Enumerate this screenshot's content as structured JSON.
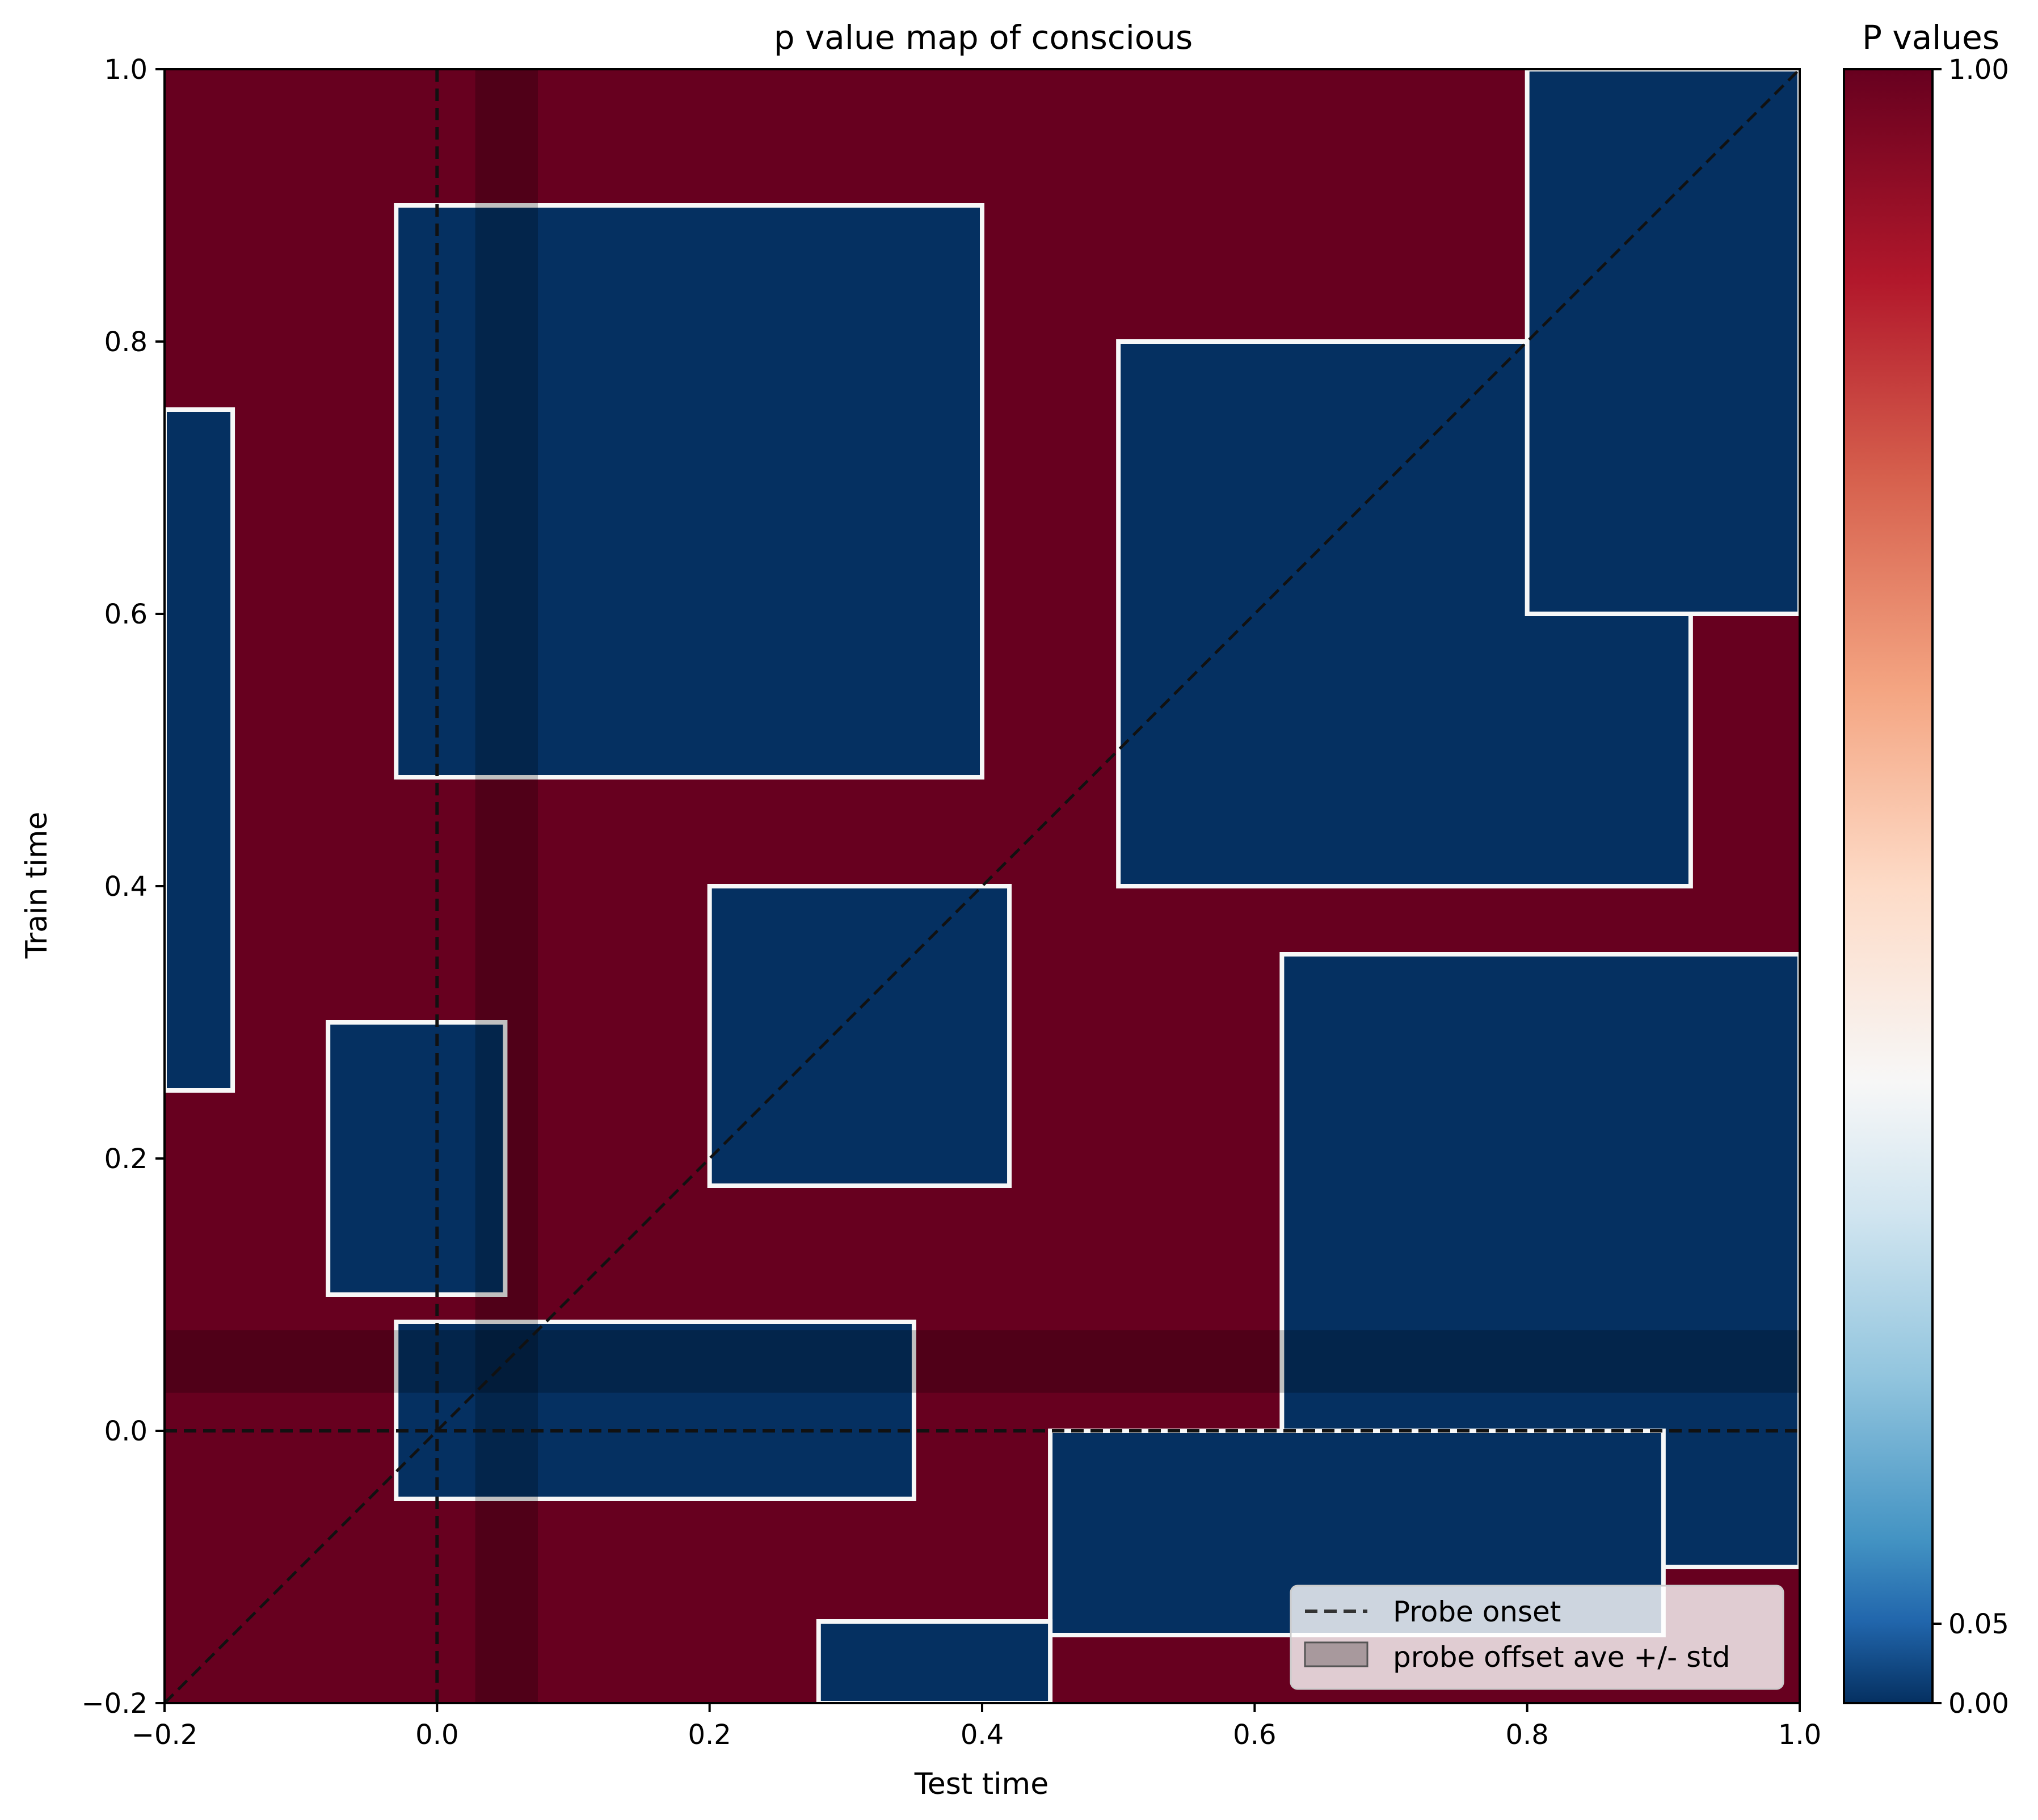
{
  "chart_data": {
    "type": "heatmap",
    "title": "p value map of conscious",
    "xlabel": "Test time",
    "ylabel": "Train time",
    "xlim": [
      -0.2,
      1.0
    ],
    "ylim": [
      -0.2,
      1.0
    ],
    "xticks": [
      "−0.2",
      "0.0",
      "0.2",
      "0.4",
      "0.6",
      "0.8",
      "1.0"
    ],
    "yticks": [
      "−0.2",
      "0.0",
      "0.2",
      "0.4",
      "0.6",
      "0.8",
      "1.0"
    ],
    "xtick_values": [
      -0.2,
      0.0,
      0.2,
      0.4,
      0.6,
      0.8,
      1.0
    ],
    "ytick_values": [
      -0.2,
      0.0,
      0.2,
      0.4,
      0.6,
      0.8,
      1.0
    ],
    "colorbar": {
      "title": "P values",
      "colormap": "RdBu_r",
      "ticks": [
        "0.00",
        "0.05",
        "1.00"
      ],
      "tick_values": [
        0.0,
        0.05,
        1.0
      ]
    },
    "probe_onset": 0.0,
    "probe_offset_band": [
      0.028,
      0.074
    ],
    "diagonal": [
      [
        -0.2,
        -0.2
      ],
      [
        1.0,
        1.0
      ]
    ],
    "legend": {
      "placement": "lower right",
      "entries": [
        "Probe onset",
        "probe offset ave +/- std"
      ]
    },
    "significant_regions": [
      {
        "x": [
          -0.2,
          -0.15
        ],
        "y": [
          0.25,
          0.75
        ]
      },
      {
        "x": [
          -0.03,
          0.4
        ],
        "y": [
          0.48,
          0.9
        ]
      },
      {
        "x": [
          0.2,
          0.42
        ],
        "y": [
          0.18,
          0.4
        ]
      },
      {
        "x": [
          0.5,
          0.92
        ],
        "y": [
          0.4,
          0.8
        ]
      },
      {
        "x": [
          0.62,
          1.0
        ],
        "y": [
          -0.1,
          0.35
        ]
      },
      {
        "x": [
          -0.03,
          0.35
        ],
        "y": [
          -0.05,
          0.08
        ]
      },
      {
        "x": [
          0.45,
          0.9
        ],
        "y": [
          -0.15,
          0.0
        ]
      },
      {
        "x": [
          0.8,
          1.0
        ],
        "y": [
          0.6,
          1.0
        ]
      },
      {
        "x": [
          -0.08,
          0.05
        ],
        "y": [
          0.1,
          0.3
        ]
      },
      {
        "x": [
          0.28,
          0.45
        ],
        "y": [
          -0.2,
          -0.14
        ]
      }
    ],
    "colors": {
      "high": "#67001f",
      "low": "#053061",
      "boundary": "#f7f7f7"
    }
  }
}
